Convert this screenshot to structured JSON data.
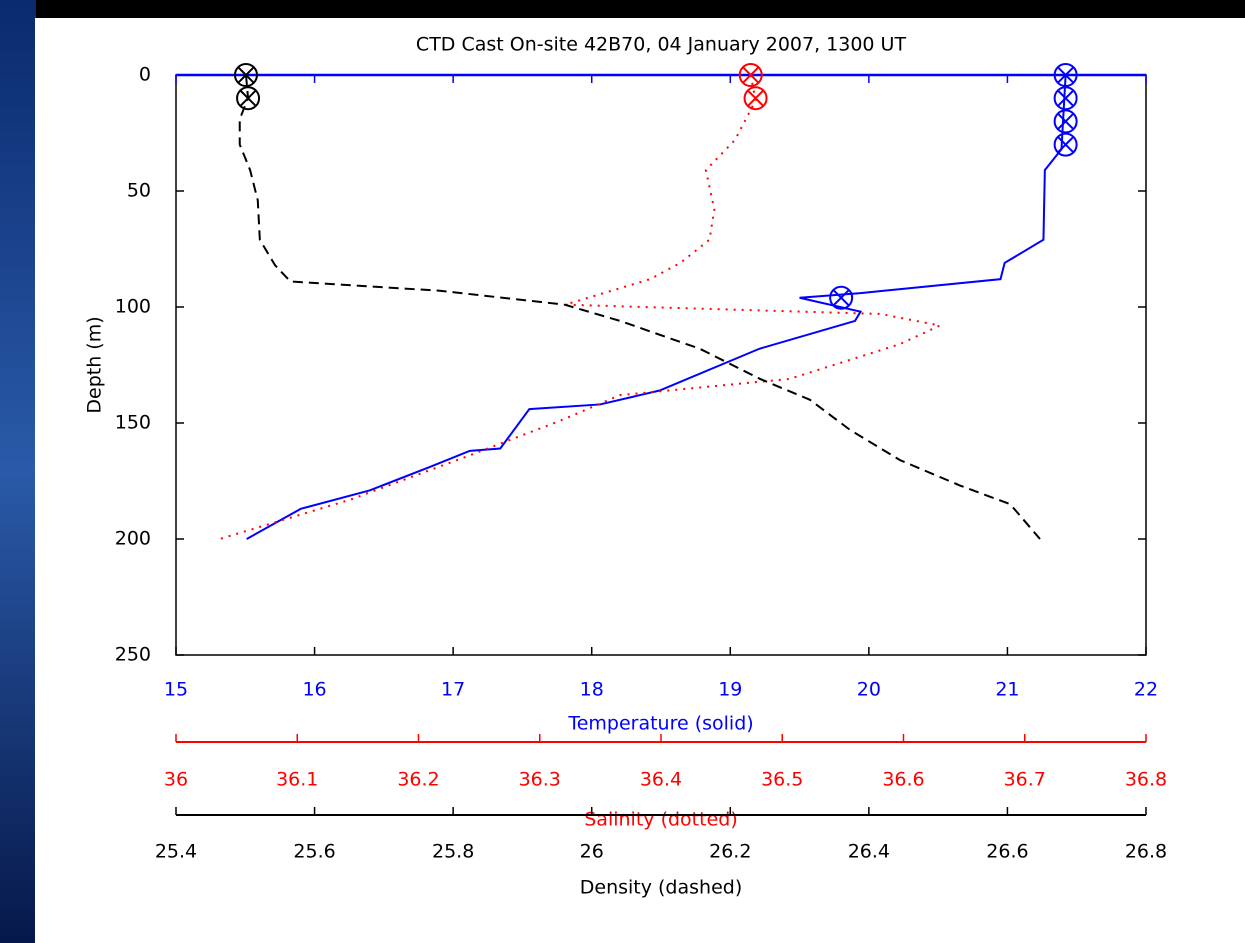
{
  "chart_data": {
    "type": "line",
    "title": "CTD Cast On-site 42B70, 04 January 2007, 1300 UT",
    "ylabel": "Depth (m)",
    "ylim": [
      0,
      250
    ],
    "y_inverted": true,
    "yticks": [
      0,
      50,
      100,
      150,
      200,
      250
    ],
    "xlabel": "Temperature (solid)",
    "xlim": [
      15,
      22
    ],
    "xticks": [
      15,
      16,
      17,
      18,
      19,
      20,
      21,
      22
    ],
    "x2label": "Salinity (dotted)",
    "x2lim": [
      36,
      36.8
    ],
    "x2ticks": [
      36,
      36.1,
      36.2,
      36.3,
      36.4,
      36.5,
      36.6,
      36.7,
      36.8
    ],
    "x3label": "Density (dashed)",
    "x3lim": [
      25.4,
      26.8
    ],
    "x3ticks": [
      25.4,
      25.6,
      25.8,
      26,
      26.2,
      26.4,
      26.6,
      26.8
    ],
    "series": [
      {
        "color": "#0000ff",
        "style": "solid",
        "axis": "x",
        "depth": [
          0,
          32,
          41,
          71,
          81,
          88,
          94,
          96,
          102,
          106,
          118,
          136,
          142,
          144,
          161,
          162,
          169,
          179,
          187,
          200
        ],
        "values": [
          21.42,
          21.39,
          21.27,
          21.26,
          20.98,
          20.95,
          19.94,
          19.5,
          19.94,
          19.9,
          19.21,
          18.49,
          18.06,
          17.55,
          17.34,
          17.12,
          16.83,
          16.4,
          15.9,
          15.51
        ],
        "marker_depth": [
          0,
          10,
          20,
          30,
          96
        ],
        "marker_values": [
          21.42,
          21.42,
          21.42,
          21.42,
          19.8
        ]
      },
      {
        "color": "#ff0000",
        "style": "dotted",
        "axis": "x2",
        "depth": [
          0,
          11,
          28,
          41,
          58,
          71,
          81,
          88,
          99,
          103,
          108,
          116,
          131,
          138,
          149,
          164,
          183,
          200
        ],
        "values": [
          36.474,
          36.478,
          36.461,
          36.437,
          36.444,
          36.44,
          36.416,
          36.391,
          36.321,
          36.581,
          36.63,
          36.597,
          36.506,
          36.366,
          36.317,
          36.242,
          36.144,
          36.036
        ],
        "marker_depth": [
          0,
          10
        ],
        "marker_values": [
          36.474,
          36.478
        ]
      },
      {
        "color": "#000000",
        "style": "dashed",
        "axis": "x3",
        "depth": [
          0,
          10,
          19,
          30,
          41,
          54,
          71,
          82,
          89,
          93,
          99,
          106,
          118,
          131,
          140,
          153,
          166,
          177,
          185,
          200
        ],
        "values": [
          25.501,
          25.504,
          25.492,
          25.492,
          25.507,
          25.518,
          25.521,
          25.543,
          25.565,
          25.781,
          25.961,
          26.041,
          26.156,
          26.243,
          26.315,
          26.373,
          26.445,
          26.532,
          26.604,
          26.647
        ],
        "marker_depth": [
          0,
          10
        ],
        "marker_values": [
          25.501,
          25.504
        ]
      }
    ]
  }
}
